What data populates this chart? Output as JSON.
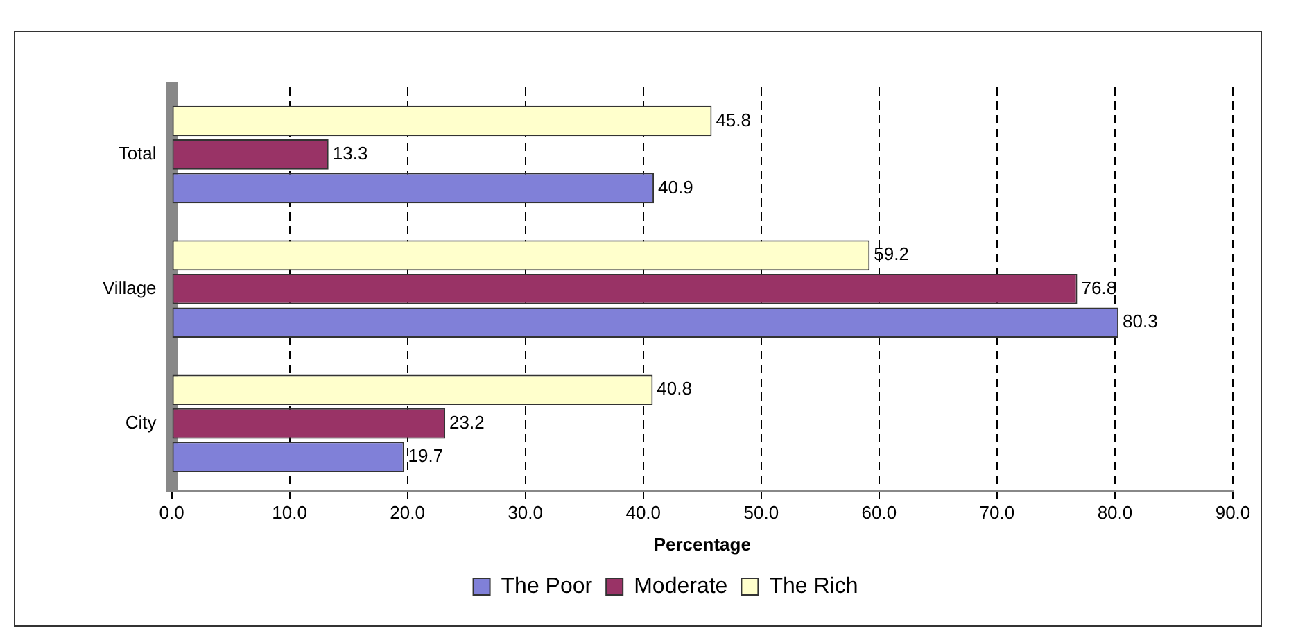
{
  "chart_data": {
    "type": "bar",
    "orientation": "horizontal",
    "xlabel": "Percentage",
    "categories": [
      "Total",
      "Village",
      "City"
    ],
    "series": [
      {
        "name": "The Poor",
        "color": "#8080d8",
        "values": [
          40.9,
          80.3,
          19.7
        ]
      },
      {
        "name": "Moderate",
        "color": "#993366",
        "values": [
          13.3,
          76.8,
          23.2
        ]
      },
      {
        "name": "The Rich",
        "color": "#ffffcc",
        "values": [
          45.8,
          59.2,
          40.8
        ]
      }
    ],
    "xlim": [
      0,
      90
    ],
    "xticks": [
      {
        "value": 0,
        "label": "0.0"
      },
      {
        "value": 10,
        "label": "10.0"
      },
      {
        "value": 20,
        "label": "20.0"
      },
      {
        "value": 30,
        "label": "30.0"
      },
      {
        "value": 40,
        "label": "40.0"
      },
      {
        "value": 50,
        "label": "50.0"
      },
      {
        "value": 60,
        "label": "60.0"
      },
      {
        "value": 70,
        "label": "70.0"
      },
      {
        "value": 80,
        "label": "80.0"
      },
      {
        "value": 90,
        "label": "90.0"
      }
    ],
    "grid": "x",
    "legend": "bottom",
    "data_labels": true
  }
}
